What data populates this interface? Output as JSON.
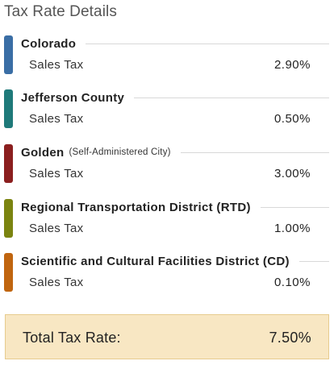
{
  "page_title": "Tax Rate Details",
  "jurisdictions": [
    {
      "name": "Colorado",
      "suffix": "",
      "tax_label": "Sales Tax",
      "rate": "2.90%",
      "color": "#3a6ea5"
    },
    {
      "name": "Jefferson County",
      "suffix": "",
      "tax_label": "Sales Tax",
      "rate": "0.50%",
      "color": "#1f7a7a"
    },
    {
      "name": "Golden",
      "suffix": "(Self-Administered City)",
      "tax_label": "Sales Tax",
      "rate": "3.00%",
      "color": "#8b1f1f"
    },
    {
      "name": "Regional Transportation District (RTD)",
      "suffix": "",
      "tax_label": "Sales Tax",
      "rate": "1.00%",
      "color": "#7b8410"
    },
    {
      "name": "Scientific and Cultural Facilities District (CD)",
      "suffix": "",
      "tax_label": "Sales Tax",
      "rate": "0.10%",
      "color": "#c0650f"
    }
  ],
  "total": {
    "label": "Total Tax Rate:",
    "value": "7.50%",
    "background": "#f8e7c3",
    "border": "#e7cb8e"
  }
}
